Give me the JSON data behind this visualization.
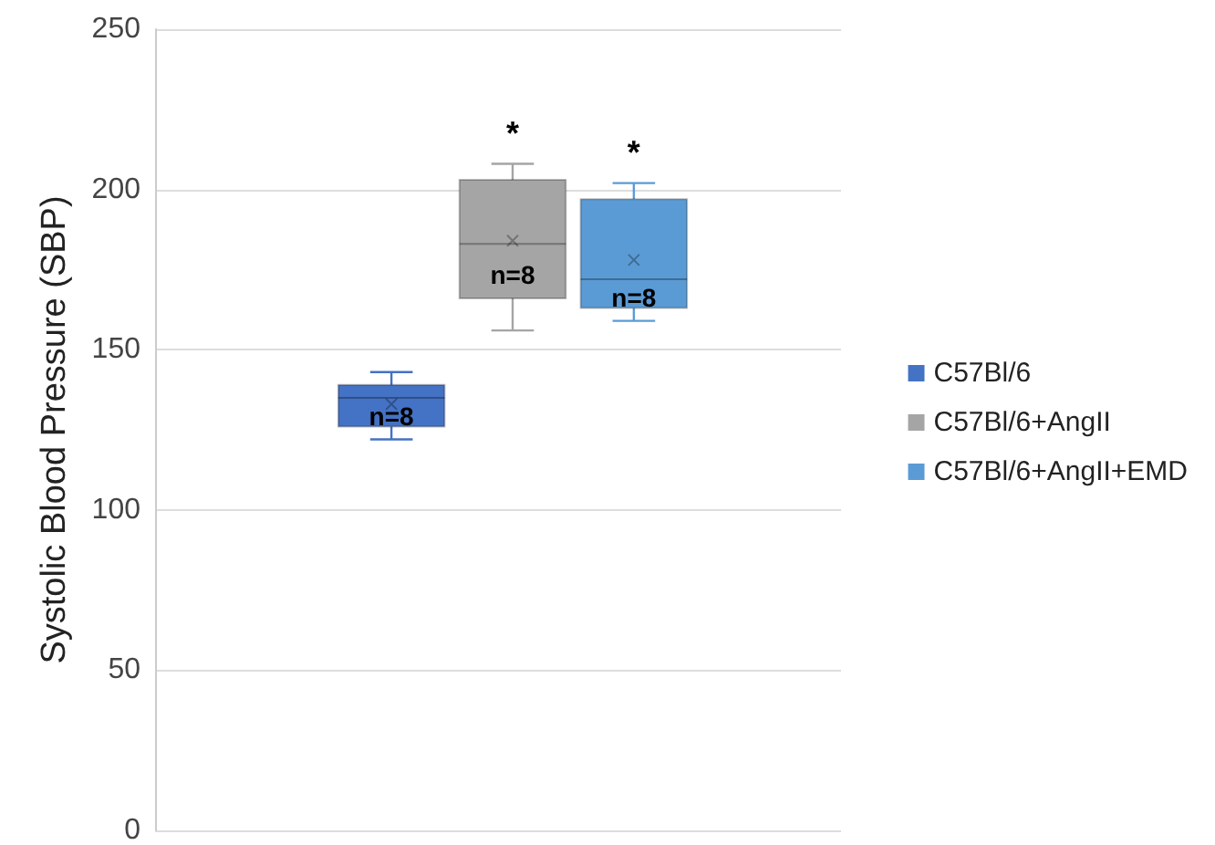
{
  "chart_data": {
    "type": "box",
    "ylabel": "Systolic Blood Pressure (SBP)",
    "categories": [
      null
    ],
    "series": [
      {
        "name": "C57Bl/6",
        "color": "#4472c4",
        "boxes": [
          {
            "low": 122,
            "q1": 126,
            "median": 135,
            "q3": 139,
            "high": 143,
            "mean": 133
          }
        ]
      },
      {
        "name": "C57Bl/6+AngII",
        "color": "#a5a5a5",
        "boxes": [
          {
            "low": 156,
            "q1": 166,
            "median": 183,
            "q3": 203,
            "high": 208,
            "mean": 184
          }
        ]
      },
      {
        "name": "C57Bl/6+AngII+EMD",
        "color": "#5b9bd5",
        "boxes": [
          {
            "low": 159,
            "q1": 163,
            "median": 172,
            "q3": 197,
            "high": 202,
            "mean": 178
          }
        ]
      }
    ],
    "annotations": [
      "n=8",
      "n=8",
      "n=8",
      "*",
      "*"
    ],
    "ylim": [
      0,
      250
    ],
    "yticks": [
      0,
      50,
      100,
      150,
      200,
      250
    ],
    "grid": "y",
    "legend": "right"
  }
}
